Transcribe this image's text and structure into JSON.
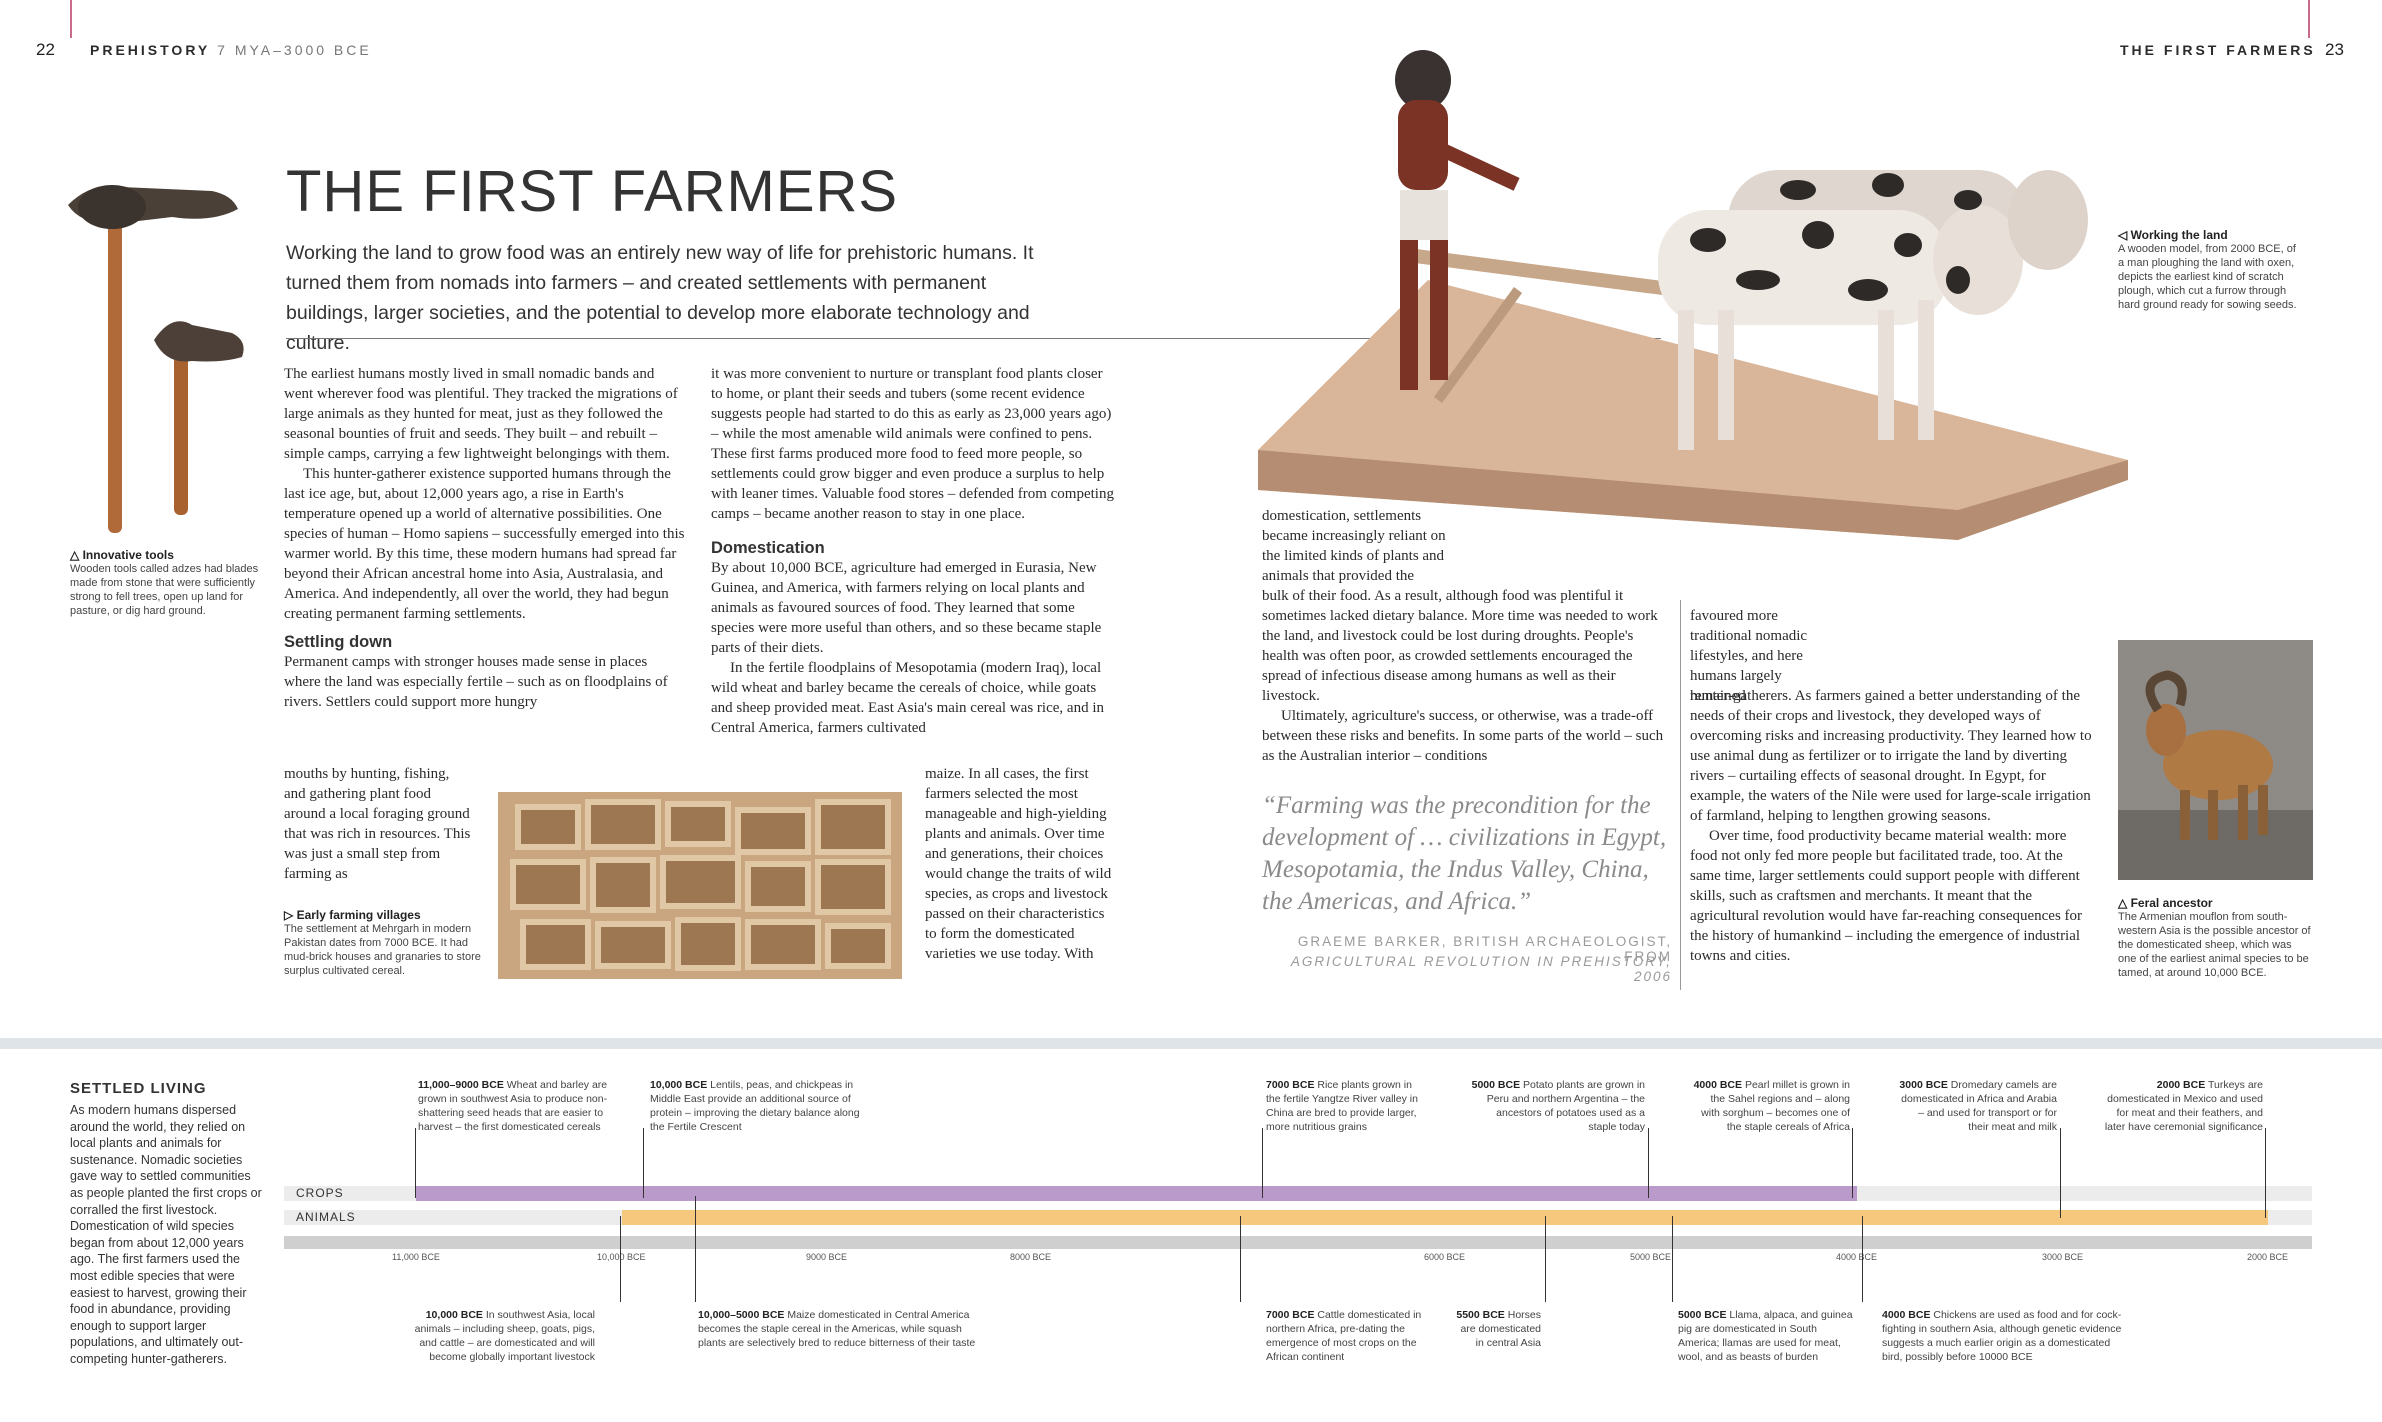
{
  "header": {
    "left_page_number": "22",
    "left_running_head_bold": "PREHISTORY",
    "left_running_head_light": "7 MYA–3000 BCE",
    "right_running_head": "THE FIRST FARMERS",
    "right_page_number": "23"
  },
  "article": {
    "title": "THE FIRST FARMERS",
    "intro": "Working the land to grow food was an entirely new way of life for prehistoric humans. It turned them from nomads into farmers – and created settlements with permanent buildings, larger societies, and the potential to develop more elaborate technology and culture.",
    "col1_p1": "The earliest humans mostly lived in small nomadic bands and went wherever food was plentiful. They tracked the migrations of large animals as they hunted for meat, just as they followed the seasonal bounties of fruit and seeds. They built – and rebuilt – simple camps, carrying a few lightweight belongings with them.",
    "col1_p2": "This hunter-gatherer existence supported humans through the last ice age, but, about 12,000 years ago, a rise in Earth's temperature opened up a world of alternative possibilities. One species of human – Homo sapiens – successfully emerged into this warmer world. By this time, these modern humans had spread far beyond their African ancestral home into Asia, Australasia, and America. And independently, all over the world, they had begun creating permanent farming settlements.",
    "sub_settling": "Settling down",
    "col1_p3a": "Permanent camps with stronger houses made sense in places where the land was especially fertile – such as on floodplains of rivers. Settlers could support more hungry",
    "col1_p3b": "mouths by hunting, fishing, and gathering plant food around a local foraging ground that was rich in resources. This was just a small step from farming as",
    "col2_p1": "it was more convenient to nurture or transplant food plants closer to home, or plant their seeds and tubers (some recent evidence suggests people had started to do this as early as 23,000 years ago) – while the most amenable wild animals were confined to pens. These first farms produced more food to feed more people, so settlements could grow bigger and even produce a surplus to help with leaner times. Valuable food stores – defended from competing camps – became another reason to stay in one place.",
    "sub_domestication": "Domestication",
    "col2_p2": "By about 10,000 BCE, agriculture had emerged in Eurasia, New Guinea, and America, with farmers relying on local plants and animals as favoured sources of food. They learned that some species were more useful than others, and so these became staple parts of their diets.",
    "col2_p3": "In the fertile floodplains of Mesopotamia (modern Iraq), local wild wheat and barley became the cereals of choice, while goats and sheep provided meat. East Asia's main cereal was rice, and in Central America, farmers cultivated",
    "col2_p4": "maize. In all cases, the first farmers selected the most manageable and high-yielding plants and animals. Over time and generations, their choices would change the traits of wild species, as crops and livestock passed on their characteristics to form the domesticated varieties we use today. With",
    "col3_p1a": "domestication, settlements became increasingly reliant on the limited kinds of plants and animals that provided the",
    "col3_p1b": "bulk of their food. As a result, although food was plentiful it sometimes lacked dietary balance. More time was needed to work the land, and livestock could be lost during droughts. People's health was often poor, as crowded settlements encouraged the spread of infectious disease among humans as well as their livestock.",
    "col3_p2": "Ultimately, agriculture's success, or otherwise, was a trade-off between these risks and benefits. In some parts of the world – such as the Australian interior – conditions",
    "col4_p1a": "favoured more traditional nomadic lifestyles, and here humans largely remained",
    "col4_p1b": "hunter-gatherers. As farmers gained a better understanding of the needs of their crops and livestock, they developed ways of overcoming risks and increasing productivity. They learned how to use animal dung as fertilizer or to irrigate the land by diverting rivers – curtailing effects of seasonal drought. In Egypt, for example, the waters of the Nile were used for large-scale irrigation of farmland, helping to lengthen growing seasons.",
    "col4_p2": "Over time, food productivity became material wealth: more food not only fed more people but facilitated trade, too. At the same time, larger settlements could support people with different skills, such as craftsmen and merchants. It meant that the agricultural revolution would have far-reaching consequences for the history of humankind – including the emergence of industrial towns and cities.",
    "quote": "“Farming was the precondition for the development of … civilizations in Egypt, Mesopotamia, the Indus Valley, China, the Americas, and Africa.”",
    "quote_attr1": "GRAEME BARKER, BRITISH ARCHAEOLOGIST, FROM",
    "quote_attr2": "AGRICULTURAL REVOLUTION IN PREHISTORY, 2006"
  },
  "captions": {
    "tools_title": "△ Innovative tools",
    "tools_text": "Wooden tools called adzes had blades made from stone that were sufficiently strong to fell trees, open up land for pasture, or dig hard ground.",
    "village_title": "▷ Early farming villages",
    "village_text": "The settlement at Mehrgarh in modern Pakistan dates from 7000 BCE. It had mud-brick houses and granaries to store surplus cultivated cereal.",
    "land_title": "◁ Working the land",
    "land_text": "A wooden model, from 2000 BCE, of a man ploughing the land with oxen, depicts the earliest kind of scratch plough, which cut a furrow through hard ground ready for sowing seeds.",
    "ancestor_title": "△ Feral ancestor",
    "ancestor_text": "The Armenian mouflon from south-western Asia is the possible ancestor of the domesticated sheep, which was one of the earliest animal species to be tamed, at around 10,000 BCE."
  },
  "timeline": {
    "heading": "SETTLED LIVING",
    "description": "As modern humans dispersed around the world, they relied on local plants and animals for sustenance. Nomadic societies gave way to settled communities as people planted the first crops or corralled the first livestock. Domestication of wild species began from about 12,000 years ago. The first farmers used the most edible species that were easiest to harvest, growing their food in abundance, providing enough to support larger populations, and ultimately out-competing hunter-gatherers.",
    "row_crops": "CROPS",
    "row_animals": "ANIMALS",
    "ticks": [
      "11,000 BCE",
      "10,000 BCE",
      "9000 BCE",
      "8000 BCE",
      "6000 BCE",
      "5000 BCE",
      "4000 BCE",
      "3000 BCE",
      "2000 BCE"
    ],
    "crops_bar": {
      "from": "11,000 BCE",
      "to": "4000 BCE",
      "color": "#b99acb"
    },
    "animals_bar": {
      "from": "10,000 BCE",
      "to": "2000 BCE",
      "color": "#f6c87e"
    },
    "events_top": [
      {
        "date": "11,000–9000 BCE",
        "text": "Wheat and barley are grown in southwest Asia to produce non-shattering seed heads that are easier to harvest – the first domesticated cereals"
      },
      {
        "date": "10,000 BCE",
        "text": "Lentils, peas, and chickpeas in Middle East provide an additional source of protein – improving the dietary balance along the Fertile Crescent"
      },
      {
        "date": "7000 BCE",
        "text": "Rice plants grown in the fertile Yangtze River valley in China are bred to provide larger, more nutritious grains"
      },
      {
        "date": "5000 BCE",
        "text": "Potato plants are grown in Peru and northern Argentina – the ancestors of potatoes used as a staple today"
      },
      {
        "date": "4000 BCE",
        "text": "Pearl millet is grown in the Sahel regions and – along with sorghum – becomes one of the staple cereals of Africa"
      },
      {
        "date": "3000 BCE",
        "text": "Dromedary camels are domesticated in Africa and Arabia – and used for transport or for their meat and milk"
      },
      {
        "date": "2000 BCE",
        "text": "Turkeys are domesticated in Mexico and used for meat and their feathers, and later have ceremonial significance"
      }
    ],
    "events_bottom": [
      {
        "date": "10,000 BCE",
        "text": "In southwest Asia, local animals – including sheep, goats, pigs, and cattle – are domesticated and will become globally important livestock"
      },
      {
        "date": "10,000–5000 BCE",
        "text": "Maize domesticated in Central America becomes the staple cereal in the Americas, while squash plants are selectively bred to reduce bitterness of their taste"
      },
      {
        "date": "7000 BCE",
        "text": "Cattle domesticated in northern Africa, pre-dating the emergence of most crops on the African continent"
      },
      {
        "date": "5500 BCE",
        "text": "Horses are domesticated in central Asia"
      },
      {
        "date": "5000 BCE",
        "text": "Llama, alpaca, and guinea pig are domesticated in South America; llamas are used for meat, wool, and as beasts of burden"
      },
      {
        "date": "4000 BCE",
        "text": "Chickens are used as food and for cock-fighting in southern Asia, although genetic evidence suggests a much earlier origin as a domesticated bird, possibly before 10000 BCE"
      }
    ]
  }
}
